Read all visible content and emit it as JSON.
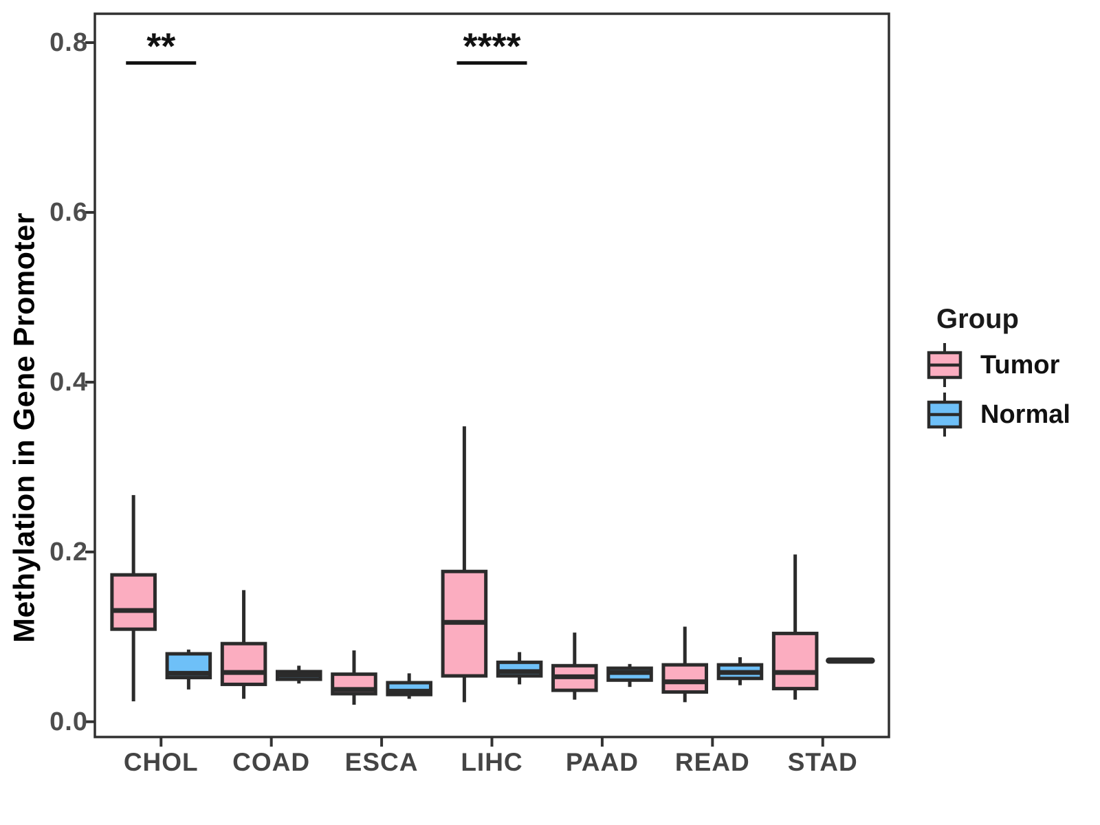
{
  "chart_data": {
    "type": "boxplot",
    "title": "",
    "xlabel": "",
    "ylabel": "Methylation in Gene Promoter",
    "categories": [
      "CHOL",
      "COAD",
      "ESCA",
      "LIHC",
      "PAAD",
      "READ",
      "STAD"
    ],
    "groups": [
      {
        "name": "Tumor",
        "fill": "#FBADC0"
      },
      {
        "name": "Normal",
        "fill": "#6EC0F8"
      }
    ],
    "yticks": [
      0.0,
      0.2,
      0.4,
      0.6,
      0.8
    ],
    "ytick_labels": [
      "0.0",
      "0.2",
      "0.4",
      "0.6",
      "0.8"
    ],
    "ylim": [
      -0.018,
      0.834
    ],
    "grid": false,
    "legend": {
      "title": "Group",
      "position": "right"
    },
    "series": [
      {
        "name": "Tumor",
        "boxes": [
          {
            "category": "CHOL",
            "low": 0.024,
            "q1": 0.109,
            "median": 0.131,
            "q3": 0.173,
            "high": 0.267
          },
          {
            "category": "COAD",
            "low": 0.027,
            "q1": 0.044,
            "median": 0.058,
            "q3": 0.092,
            "high": 0.155
          },
          {
            "category": "ESCA",
            "low": 0.02,
            "q1": 0.033,
            "median": 0.038,
            "q3": 0.056,
            "high": 0.084
          },
          {
            "category": "LIHC",
            "low": 0.023,
            "q1": 0.054,
            "median": 0.117,
            "q3": 0.177,
            "high": 0.348
          },
          {
            "category": "PAAD",
            "low": 0.026,
            "q1": 0.037,
            "median": 0.053,
            "q3": 0.066,
            "high": 0.105
          },
          {
            "category": "READ",
            "low": 0.023,
            "q1": 0.035,
            "median": 0.047,
            "q3": 0.067,
            "high": 0.112
          },
          {
            "category": "STAD",
            "low": 0.026,
            "q1": 0.039,
            "median": 0.058,
            "q3": 0.104,
            "high": 0.197
          }
        ]
      },
      {
        "name": "Normal",
        "boxes": [
          {
            "category": "CHOL",
            "low": 0.038,
            "q1": 0.052,
            "median": 0.057,
            "q3": 0.08,
            "high": 0.085
          },
          {
            "category": "COAD",
            "low": 0.045,
            "q1": 0.05,
            "median": 0.055,
            "q3": 0.059,
            "high": 0.066
          },
          {
            "category": "ESCA",
            "low": 0.027,
            "q1": 0.032,
            "median": 0.036,
            "q3": 0.046,
            "high": 0.057
          },
          {
            "category": "LIHC",
            "low": 0.044,
            "q1": 0.054,
            "median": 0.059,
            "q3": 0.07,
            "high": 0.082
          },
          {
            "category": "PAAD",
            "low": 0.041,
            "q1": 0.049,
            "median": 0.058,
            "q3": 0.063,
            "high": 0.068
          },
          {
            "category": "READ",
            "low": 0.043,
            "q1": 0.051,
            "median": 0.058,
            "q3": 0.067,
            "high": 0.076
          },
          {
            "category": "STAD",
            "low": 0.072,
            "q1": 0.072,
            "median": 0.072,
            "q3": 0.072,
            "high": 0.072
          }
        ]
      }
    ],
    "annotations": [
      {
        "category": "CHOL",
        "label": "**",
        "line_y": 0.776
      },
      {
        "category": "LIHC",
        "label": "****",
        "line_y": 0.776
      }
    ],
    "colors": {
      "box_stroke": "#2b2b2b",
      "panel_border": "#303030",
      "tick": "#333333",
      "tick_label": "#4d4d4d",
      "annotation": "#111111"
    }
  }
}
